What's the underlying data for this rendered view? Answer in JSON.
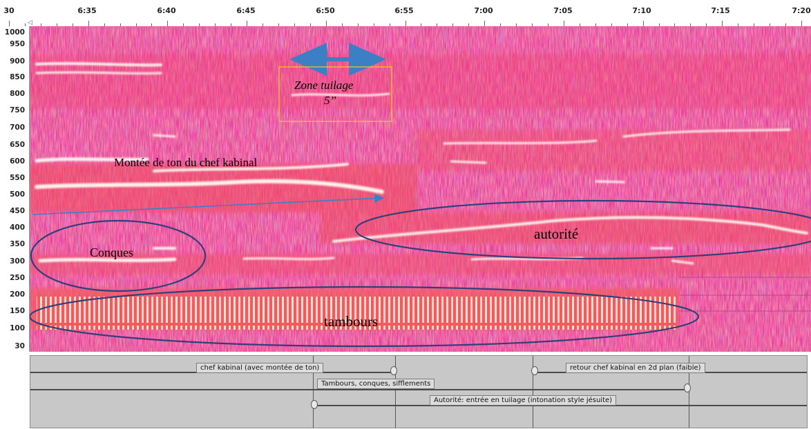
{
  "timeline": {
    "ticks": [
      "30",
      "6:35",
      "6:40",
      "6:45",
      "6:50",
      "6:55",
      "7:00",
      "7:05",
      "7:10",
      "7:15",
      "7:20"
    ]
  },
  "frequency_axis": {
    "labels": [
      "1000",
      "950",
      "900",
      "850",
      "800",
      "750",
      "700",
      "650",
      "600",
      "550",
      "500",
      "450",
      "400",
      "350",
      "300",
      "250",
      "200",
      "150",
      "100",
      "30"
    ]
  },
  "annotations": {
    "zone_tuilage": "Zone tuilage",
    "zone_duration": "5’’",
    "montee": "Montée de ton du chef kabinal",
    "conques": "Conques",
    "autorite": "autorité",
    "tambours": "tambours"
  },
  "labels": {
    "chef_kabinal": "chef kabinal (avec montée de ton)",
    "retour_chef": "retour chef kabinal en 2d plan (faible)",
    "tambours": "Tambours, conques, sifflements",
    "autorite": "Autorité: entrée en tuilage (intonation style jésuite)"
  },
  "colors": {
    "spectrogram_base": "#e8409a",
    "energy": "#f04a5a",
    "ellipse": "#2e3f7a",
    "arrow": "#3d7fc4",
    "zone_box": "#e8d020"
  }
}
